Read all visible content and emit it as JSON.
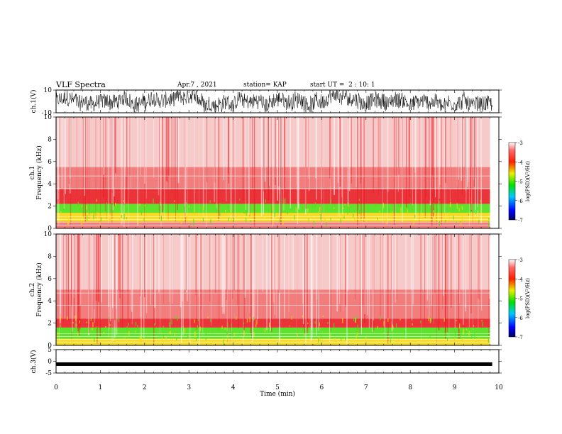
{
  "header": {
    "title": "VLF Spectra",
    "date": "Apr.7 , 2021",
    "station": "station= KAP",
    "start": "start UT =  2 : 10: 1"
  },
  "colors": {
    "red": "#e8141a",
    "yellow": "#f5d90c",
    "green": "#4fe01a",
    "waveform": "#000000"
  },
  "chart_data": [
    {
      "type": "line",
      "panel": "ch1-waveform",
      "ylabel": "ch.1(V)",
      "ylim": [
        -10,
        10
      ],
      "yticklabels": [
        "10",
        "-10"
      ],
      "xlim": [
        0,
        10
      ],
      "description_values": "dense noisy trace spanning roughly -8 to 8 V from 0 to 9.8 min"
    },
    {
      "type": "heatmap",
      "panel": "ch1-spectrogram",
      "ylabel_line1": "ch.1",
      "ylabel_line2": "Frequency (kHz)",
      "ylim": [
        0,
        10
      ],
      "yticklabels": [
        "0",
        "2",
        "4",
        "6",
        "8",
        "10"
      ],
      "xlim": [
        0,
        10
      ],
      "data_end_min": 9.8,
      "bands": [
        {
          "from": 0,
          "to": 0.6,
          "level": "red"
        },
        {
          "from": 0.6,
          "to": 1.4,
          "level": "yellow"
        },
        {
          "from": 1.4,
          "to": 2.2,
          "level": "green"
        },
        {
          "from": 2.2,
          "to": 3.5,
          "level": "red-dense"
        },
        {
          "from": 3.5,
          "to": 5.5,
          "level": "red"
        },
        {
          "from": 5.5,
          "to": 10,
          "level": "red-sparse"
        }
      ],
      "colorbar": {
        "label": "log(PSD)(V²/Hz)",
        "ticks": [
          "-3",
          "-4",
          "-5",
          "-6",
          "-7"
        ],
        "range": [
          -7,
          -3
        ]
      }
    },
    {
      "type": "heatmap",
      "panel": "ch2-spectrogram",
      "ylabel_line1": "ch.2",
      "ylabel_line2": "Frequency (kHz)",
      "ylim": [
        0,
        10
      ],
      "yticklabels": [
        "0",
        "2",
        "4",
        "6",
        "8",
        "10"
      ],
      "xlim": [
        0,
        10
      ],
      "data_end_min": 9.8,
      "bands": [
        {
          "from": 0,
          "to": 0.6,
          "level": "yellow"
        },
        {
          "from": 0.6,
          "to": 1.6,
          "level": "green"
        },
        {
          "from": 1.6,
          "to": 2.4,
          "level": "red-dense"
        },
        {
          "from": 2.4,
          "to": 5.0,
          "level": "red"
        },
        {
          "from": 5.0,
          "to": 10,
          "level": "red-sparse"
        }
      ],
      "colorbar": {
        "label": "log(PSD)(V²/Hz)",
        "ticks": [
          "-3",
          "-4",
          "-5",
          "-6",
          "-7"
        ],
        "range": [
          -7,
          -3
        ]
      }
    },
    {
      "type": "line",
      "panel": "ch3-waveform",
      "ylabel": "ch.3(V)",
      "ylim": [
        -5,
        5
      ],
      "yticklabels": [
        "5",
        "0",
        "-5"
      ],
      "xlim": [
        0,
        10
      ],
      "constant_level": -1.2
    }
  ],
  "xaxis": {
    "label": "Time (min)",
    "ticks": [
      "0",
      "1",
      "2",
      "3",
      "4",
      "5",
      "6",
      "7",
      "8",
      "9",
      "10"
    ]
  }
}
